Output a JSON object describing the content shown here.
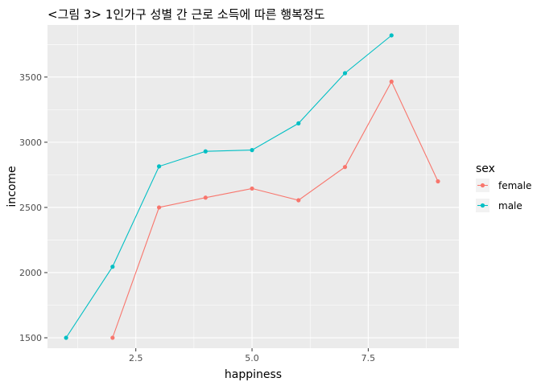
{
  "chart_data": {
    "type": "line",
    "title": "<그림 3> 1인가구 성별 간 근로 소득에 따른 행복정도",
    "xlabel": "happiness",
    "ylabel": "income",
    "xlim": [
      0.6,
      9.45
    ],
    "ylim": [
      1420,
      3900
    ],
    "x_ticks": [
      2.5,
      5.0,
      7.5
    ],
    "x_tick_labels": [
      "2.5",
      "5.0",
      "7.5"
    ],
    "y_ticks": [
      1500,
      2000,
      2500,
      3000,
      3500
    ],
    "y_tick_labels": [
      "1500",
      "2000",
      "2500",
      "3000",
      "3500"
    ],
    "grid": true,
    "legend": {
      "title": "sex",
      "position": "right"
    },
    "series": [
      {
        "name": "female",
        "color": "#F8766D",
        "x": [
          2,
          3,
          4,
          5,
          6,
          7,
          8,
          9
        ],
        "values": [
          1500,
          2500,
          2575,
          2645,
          2555,
          2810,
          3465,
          2700
        ]
      },
      {
        "name": "male",
        "color": "#00BFC4",
        "x": [
          1,
          2,
          3,
          4,
          5,
          6,
          7,
          8
        ],
        "values": [
          1500,
          2045,
          2815,
          2930,
          2940,
          3145,
          3530,
          3820
        ]
      }
    ]
  }
}
